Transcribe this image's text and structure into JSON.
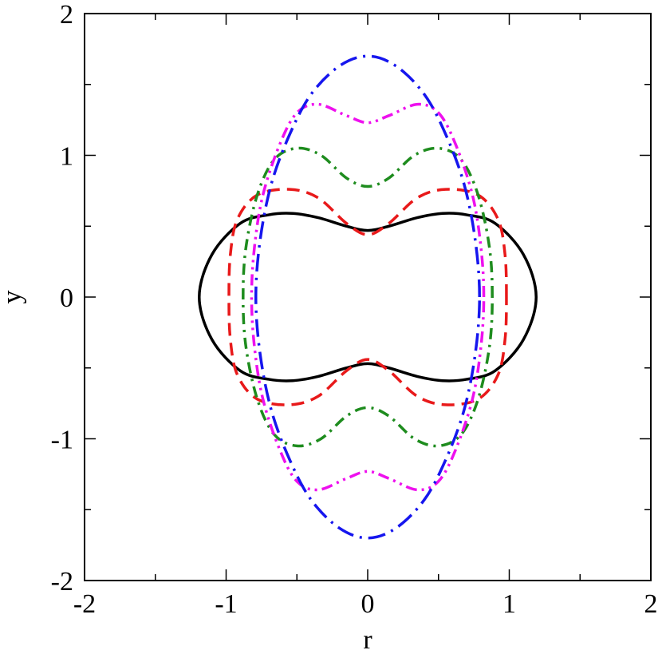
{
  "chart_data": {
    "type": "line",
    "title": "",
    "xlabel": "r",
    "ylabel": "y",
    "xlim": [
      -2,
      2
    ],
    "ylim": [
      -2,
      2
    ],
    "x_ticks": [
      "-2",
      "-1",
      "0",
      "1",
      "2"
    ],
    "y_ticks": [
      "-2",
      "-1",
      "0",
      "1",
      "2"
    ],
    "x_tick_values": [
      -2,
      -1,
      0,
      1,
      2
    ],
    "y_tick_values": [
      -2,
      -1,
      0,
      1,
      2
    ],
    "grid": false,
    "legend": "none",
    "series": [
      {
        "color": "#000000",
        "style": "solid",
        "points": [
          [
            1.19,
            0
          ],
          [
            1.1,
            0.3
          ],
          [
            0.9,
            0.52
          ],
          [
            0.7,
            0.58
          ],
          [
            0.53,
            0.59
          ],
          [
            0.35,
            0.56
          ],
          [
            0.15,
            0.5
          ],
          [
            0,
            0.47
          ],
          [
            -0.15,
            0.5
          ],
          [
            -0.35,
            0.56
          ],
          [
            -0.53,
            0.59
          ],
          [
            -0.7,
            0.58
          ],
          [
            -0.9,
            0.52
          ],
          [
            -1.1,
            0.3
          ],
          [
            -1.19,
            0
          ],
          [
            -1.1,
            -0.3
          ],
          [
            -0.9,
            -0.52
          ],
          [
            -0.7,
            -0.58
          ],
          [
            -0.53,
            -0.59
          ],
          [
            -0.35,
            -0.56
          ],
          [
            -0.15,
            -0.5
          ],
          [
            0,
            -0.47
          ],
          [
            0.15,
            -0.5
          ],
          [
            0.35,
            -0.56
          ],
          [
            0.53,
            -0.59
          ],
          [
            0.7,
            -0.58
          ],
          [
            0.9,
            -0.52
          ],
          [
            1.1,
            -0.3
          ],
          [
            1.19,
            0
          ]
        ]
      },
      {
        "color": "#e8191a",
        "style": "dashed",
        "points": [
          [
            0.98,
            0
          ],
          [
            0.97,
            0.3
          ],
          [
            0.92,
            0.55
          ],
          [
            0.78,
            0.72
          ],
          [
            0.55,
            0.76
          ],
          [
            0.35,
            0.7
          ],
          [
            0.15,
            0.52
          ],
          [
            0,
            0.44
          ],
          [
            -0.15,
            0.52
          ],
          [
            -0.35,
            0.7
          ],
          [
            -0.55,
            0.76
          ],
          [
            -0.78,
            0.72
          ],
          [
            -0.92,
            0.55
          ],
          [
            -0.97,
            0.3
          ],
          [
            -0.98,
            0
          ],
          [
            -0.97,
            -0.3
          ],
          [
            -0.92,
            -0.55
          ],
          [
            -0.78,
            -0.72
          ],
          [
            -0.55,
            -0.76
          ],
          [
            -0.35,
            -0.7
          ],
          [
            -0.15,
            -0.52
          ],
          [
            0,
            -0.44
          ],
          [
            0.15,
            -0.52
          ],
          [
            0.35,
            -0.7
          ],
          [
            0.55,
            -0.76
          ],
          [
            0.78,
            -0.72
          ],
          [
            0.92,
            -0.55
          ],
          [
            0.97,
            -0.3
          ],
          [
            0.98,
            0
          ]
        ]
      },
      {
        "color": "#1e8c1e",
        "style": "dash-dot",
        "points": [
          [
            0.88,
            0
          ],
          [
            0.86,
            0.35
          ],
          [
            0.78,
            0.72
          ],
          [
            0.66,
            0.97
          ],
          [
            0.5,
            1.05
          ],
          [
            0.33,
            1.0
          ],
          [
            0.15,
            0.84
          ],
          [
            0,
            0.78
          ],
          [
            -0.15,
            0.84
          ],
          [
            -0.33,
            1.0
          ],
          [
            -0.5,
            1.05
          ],
          [
            -0.66,
            0.97
          ],
          [
            -0.78,
            0.72
          ],
          [
            -0.86,
            0.35
          ],
          [
            -0.88,
            0
          ],
          [
            -0.86,
            -0.35
          ],
          [
            -0.78,
            -0.72
          ],
          [
            -0.66,
            -0.97
          ],
          [
            -0.5,
            -1.05
          ],
          [
            -0.33,
            -1.0
          ],
          [
            -0.15,
            -0.84
          ],
          [
            0,
            -0.78
          ],
          [
            0.15,
            -0.84
          ],
          [
            0.33,
            -1.0
          ],
          [
            0.5,
            -1.05
          ],
          [
            0.66,
            -0.97
          ],
          [
            0.78,
            -0.72
          ],
          [
            0.86,
            -0.35
          ],
          [
            0.88,
            0
          ]
        ]
      },
      {
        "color": "#ee10ee",
        "style": "dash-dot-dot",
        "points": [
          [
            0.82,
            0
          ],
          [
            0.8,
            0.35
          ],
          [
            0.74,
            0.72
          ],
          [
            0.62,
            1.08
          ],
          [
            0.5,
            1.3
          ],
          [
            0.35,
            1.36
          ],
          [
            0.15,
            1.28
          ],
          [
            0,
            1.23
          ],
          [
            -0.15,
            1.28
          ],
          [
            -0.35,
            1.36
          ],
          [
            -0.5,
            1.3
          ],
          [
            -0.62,
            1.08
          ],
          [
            -0.74,
            0.72
          ],
          [
            -0.8,
            0.35
          ],
          [
            -0.82,
            0
          ],
          [
            -0.8,
            -0.35
          ],
          [
            -0.74,
            -0.72
          ],
          [
            -0.62,
            -1.08
          ],
          [
            -0.5,
            -1.3
          ],
          [
            -0.35,
            -1.36
          ],
          [
            -0.15,
            -1.28
          ],
          [
            0,
            -1.23
          ],
          [
            0.15,
            -1.28
          ],
          [
            0.35,
            -1.36
          ],
          [
            0.5,
            -1.3
          ],
          [
            0.62,
            -1.08
          ],
          [
            0.74,
            -0.72
          ],
          [
            0.8,
            -0.35
          ],
          [
            0.82,
            0
          ]
        ]
      },
      {
        "color": "#1616ee",
        "style": "long-dash-dot",
        "points": [
          [
            0.79,
            0
          ],
          [
            0.76,
            0.4
          ],
          [
            0.68,
            0.8
          ],
          [
            0.55,
            1.15
          ],
          [
            0.4,
            1.43
          ],
          [
            0.2,
            1.63
          ],
          [
            0,
            1.7
          ],
          [
            -0.2,
            1.63
          ],
          [
            -0.4,
            1.43
          ],
          [
            -0.55,
            1.15
          ],
          [
            -0.68,
            0.8
          ],
          [
            -0.76,
            0.4
          ],
          [
            -0.79,
            0
          ],
          [
            -0.76,
            -0.4
          ],
          [
            -0.68,
            -0.8
          ],
          [
            -0.55,
            -1.15
          ],
          [
            -0.4,
            -1.43
          ],
          [
            -0.2,
            -1.63
          ],
          [
            0,
            -1.7
          ],
          [
            0.2,
            -1.63
          ],
          [
            0.4,
            -1.43
          ],
          [
            0.55,
            -1.15
          ],
          [
            0.68,
            -0.8
          ],
          [
            0.76,
            -0.4
          ],
          [
            0.79,
            0
          ]
        ]
      }
    ]
  }
}
